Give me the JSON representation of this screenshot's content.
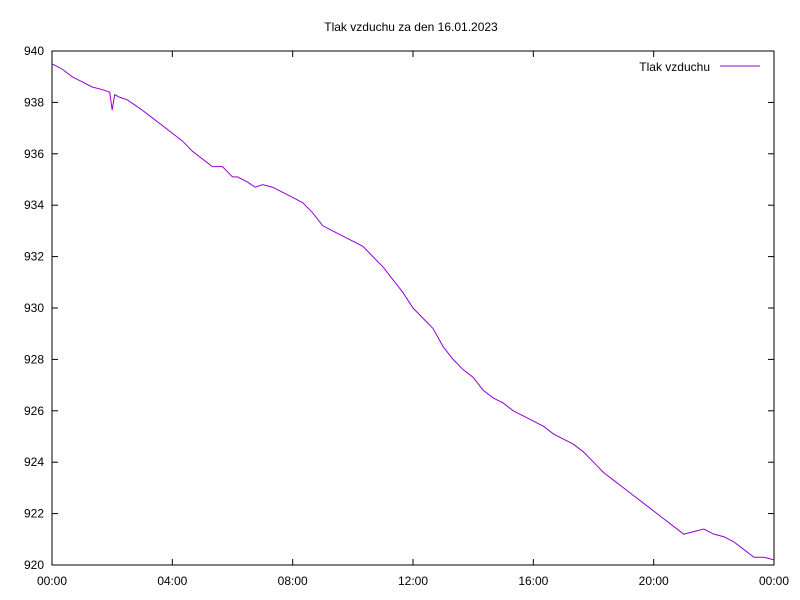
{
  "chart_data": {
    "type": "line",
    "title": "Tlak vzduchu za den 16.01.2023",
    "xlabel": "",
    "ylabel": "",
    "xlim": [
      "00:00",
      "24:00"
    ],
    "ylim": [
      920,
      940
    ],
    "x_tick_labels": [
      "00:00",
      "04:00",
      "08:00",
      "12:00",
      "16:00",
      "20:00",
      "00:00"
    ],
    "y_tick_labels": [
      "940",
      "938",
      "936",
      "934",
      "932",
      "930",
      "928",
      "926",
      "924",
      "922",
      "920"
    ],
    "grid": false,
    "legend_position": "top-right",
    "series": [
      {
        "name": "Tlak vzduchu",
        "color": "#9400d3",
        "x": [
          "00:00",
          "00:20",
          "00:40",
          "01:00",
          "01:20",
          "01:40",
          "01:55",
          "02:00",
          "02:05",
          "02:15",
          "02:30",
          "02:45",
          "03:00",
          "03:20",
          "03:40",
          "04:00",
          "04:20",
          "04:40",
          "05:00",
          "05:20",
          "05:40",
          "06:00",
          "06:10",
          "06:30",
          "06:45",
          "07:00",
          "07:20",
          "07:40",
          "08:00",
          "08:20",
          "08:40",
          "09:00",
          "09:20",
          "09:40",
          "10:00",
          "10:20",
          "10:40",
          "11:00",
          "11:20",
          "11:40",
          "12:00",
          "12:20",
          "12:40",
          "13:00",
          "13:20",
          "13:40",
          "14:00",
          "14:20",
          "14:40",
          "15:00",
          "15:20",
          "15:40",
          "16:00",
          "16:20",
          "16:40",
          "17:00",
          "17:20",
          "17:40",
          "18:00",
          "18:20",
          "18:40",
          "19:00",
          "19:20",
          "19:40",
          "20:00",
          "20:20",
          "20:40",
          "21:00",
          "21:20",
          "21:40",
          "22:00",
          "22:20",
          "22:40",
          "23:00",
          "23:20",
          "23:40",
          "24:00"
        ],
        "y": [
          939.5,
          939.3,
          939.0,
          938.8,
          938.6,
          938.5,
          938.4,
          937.7,
          938.3,
          938.2,
          938.1,
          937.9,
          937.7,
          937.4,
          937.1,
          936.8,
          936.5,
          936.1,
          935.8,
          935.5,
          935.5,
          935.1,
          935.1,
          934.9,
          934.7,
          934.8,
          934.7,
          934.5,
          934.3,
          934.1,
          933.7,
          933.2,
          933.0,
          932.8,
          932.6,
          932.4,
          932.0,
          931.6,
          931.1,
          930.6,
          930.0,
          929.6,
          929.2,
          928.5,
          928.0,
          927.6,
          927.3,
          926.8,
          926.5,
          926.3,
          926.0,
          925.8,
          925.6,
          925.4,
          925.1,
          924.9,
          924.7,
          924.4,
          924.0,
          923.6,
          923.3,
          923.0,
          922.7,
          922.4,
          922.1,
          921.8,
          921.5,
          921.2,
          921.3,
          921.4,
          921.2,
          921.1,
          920.9,
          920.6,
          920.3,
          920.3,
          920.2
        ]
      }
    ]
  }
}
